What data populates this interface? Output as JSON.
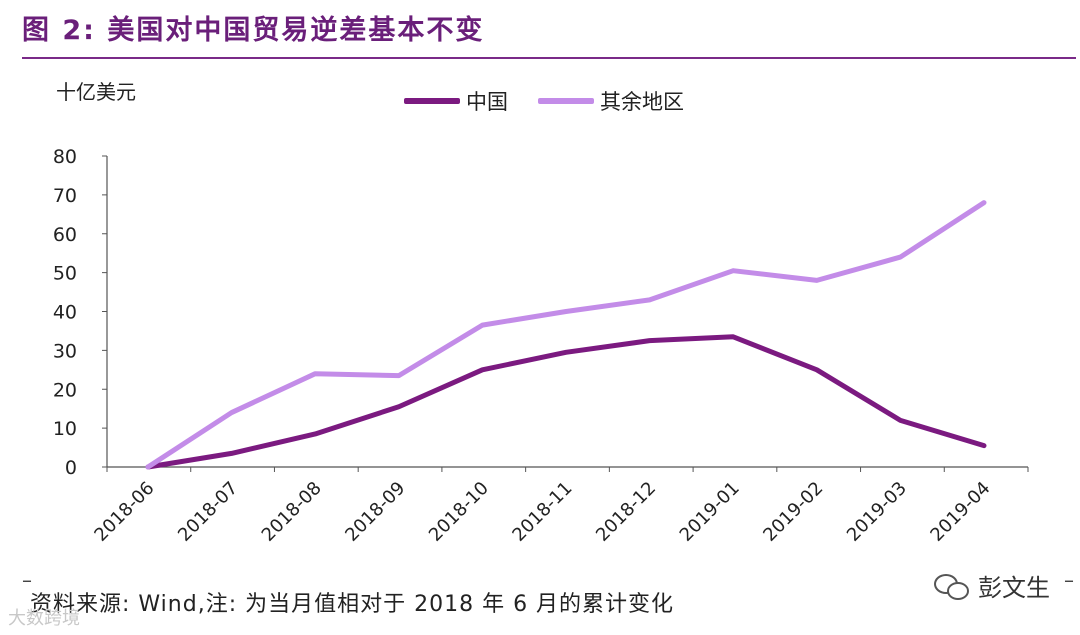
{
  "figure": {
    "title": "图 2: 美国对中国贸易逆差基本不变",
    "unit_label": "十亿美元",
    "source_note": "资料来源: Wind,注: 为当月值相对于 2018 年 6 月的累计变化",
    "brand": "彭文生",
    "watermark": "大数跨境"
  },
  "colors": {
    "title": "#6a1f7a",
    "china": "#7b1a80",
    "rest": "#c38ce8"
  },
  "icons": [
    "wechat-icon"
  ],
  "chart_data": {
    "type": "line",
    "title": "",
    "xlabel": "",
    "ylabel": "十亿美元",
    "ylim": [
      0,
      80
    ],
    "yticks": [
      "0",
      "10",
      "20",
      "30",
      "40",
      "50",
      "60",
      "70",
      "80"
    ],
    "categories": [
      "2018-06",
      "2018-07",
      "2018-08",
      "2018-09",
      "2018-10",
      "2018-11",
      "2018-12",
      "2019-01",
      "2019-02",
      "2019-03",
      "2019-04"
    ],
    "series": [
      {
        "name": "中国",
        "color": "#7b1a80",
        "values": [
          0,
          3.5,
          8.5,
          15.5,
          25,
          29.5,
          32.5,
          33.5,
          25,
          12,
          5.5
        ]
      },
      {
        "name": "其余地区",
        "color": "#c38ce8",
        "values": [
          0,
          14,
          24,
          23.5,
          36.5,
          40,
          43,
          50.5,
          48,
          54,
          68
        ]
      }
    ],
    "legend": "top-center",
    "grid": false
  }
}
